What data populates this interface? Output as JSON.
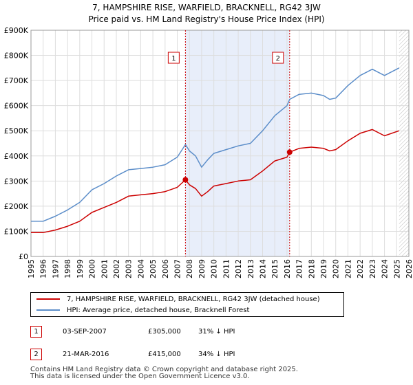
{
  "title_line1": "7, HAMPSHIRE RISE, WARFIELD, BRACKNELL, RG42 3JW",
  "title_line2": "Price paid vs. HM Land Registry's House Price Index (HPI)",
  "chart_data": {
    "type": "line",
    "title": "7, HAMPSHIRE RISE, WARFIELD, BRACKNELL, RG42 3JW — Price paid vs. HM Land Registry's House Price Index (HPI)",
    "xlim": [
      1995,
      2026
    ],
    "ylim": [
      0,
      900000
    ],
    "x_ticks": [
      1995,
      1996,
      1997,
      1998,
      1999,
      2000,
      2001,
      2002,
      2003,
      2004,
      2005,
      2006,
      2007,
      2008,
      2009,
      2010,
      2011,
      2012,
      2013,
      2014,
      2015,
      2016,
      2017,
      2018,
      2019,
      2020,
      2021,
      2022,
      2023,
      2024,
      2025,
      2026
    ],
    "y_ticks": [
      0,
      100000,
      200000,
      300000,
      400000,
      500000,
      600000,
      700000,
      800000,
      900000
    ],
    "y_tick_labels": [
      "£0",
      "£100K",
      "£200K",
      "£300K",
      "£400K",
      "£500K",
      "£600K",
      "£700K",
      "£800K",
      "£900K"
    ],
    "grid": true,
    "shaded_span": [
      2007.67,
      2016.22
    ],
    "hatched_from": 2025.2,
    "series": [
      {
        "name": "7, HAMPSHIRE RISE, WARFIELD, BRACKNELL, RG42 3JW (detached house)",
        "color": "#cc0000",
        "x": [
          1995,
          1996,
          1997,
          1998,
          1999,
          2000,
          2001,
          2002,
          2003,
          2004,
          2005,
          2006,
          2007,
          2007.67,
          2008,
          2008.5,
          2009,
          2009.5,
          2010,
          2011,
          2012,
          2013,
          2014,
          2015,
          2016,
          2016.22,
          2017,
          2018,
          2019,
          2019.5,
          2020,
          2021,
          2022,
          2023,
          2024,
          2025.2
        ],
        "y": [
          95000,
          95000,
          105000,
          120000,
          140000,
          175000,
          195000,
          215000,
          240000,
          245000,
          250000,
          258000,
          275000,
          305000,
          285000,
          270000,
          240000,
          258000,
          280000,
          290000,
          300000,
          305000,
          340000,
          380000,
          395000,
          415000,
          430000,
          435000,
          430000,
          420000,
          425000,
          460000,
          490000,
          505000,
          480000,
          500000
        ]
      },
      {
        "name": "HPI: Average price, detached house, Bracknell Forest",
        "color": "#5b8dc9",
        "x": [
          1995,
          1996,
          1997,
          1998,
          1999,
          2000,
          2001,
          2002,
          2003,
          2004,
          2005,
          2006,
          2007,
          2007.67,
          2008,
          2008.5,
          2009,
          2009.5,
          2010,
          2011,
          2012,
          2013,
          2014,
          2015,
          2016,
          2016.22,
          2017,
          2018,
          2019,
          2019.5,
          2020,
          2021,
          2022,
          2023,
          2024,
          2025.2
        ],
        "y": [
          140000,
          140000,
          160000,
          185000,
          215000,
          265000,
          290000,
          320000,
          345000,
          350000,
          355000,
          365000,
          395000,
          445000,
          420000,
          400000,
          355000,
          385000,
          410000,
          425000,
          440000,
          450000,
          500000,
          560000,
          600000,
          625000,
          645000,
          650000,
          640000,
          625000,
          630000,
          680000,
          720000,
          745000,
          720000,
          750000
        ]
      }
    ],
    "markers": [
      {
        "label": "1",
        "x": 2007.67,
        "y": 305000
      },
      {
        "label": "2",
        "x": 2016.22,
        "y": 415000
      }
    ]
  },
  "legend": {
    "items": [
      {
        "label": "7, HAMPSHIRE RISE, WARFIELD, BRACKNELL, RG42 3JW (detached house)",
        "color": "#cc0000"
      },
      {
        "label": "HPI: Average price, detached house, Bracknell Forest",
        "color": "#5b8dc9"
      }
    ]
  },
  "sales": [
    {
      "num": "1",
      "date": "03-SEP-2007",
      "price": "£305,000",
      "hpi": "31% ↓ HPI"
    },
    {
      "num": "2",
      "date": "21-MAR-2016",
      "price": "£415,000",
      "hpi": "34% ↓ HPI"
    }
  ],
  "footer": {
    "line1": "Contains HM Land Registry data © Crown copyright and database right 2025.",
    "line2": "This data is licensed under the Open Government Licence v3.0."
  }
}
